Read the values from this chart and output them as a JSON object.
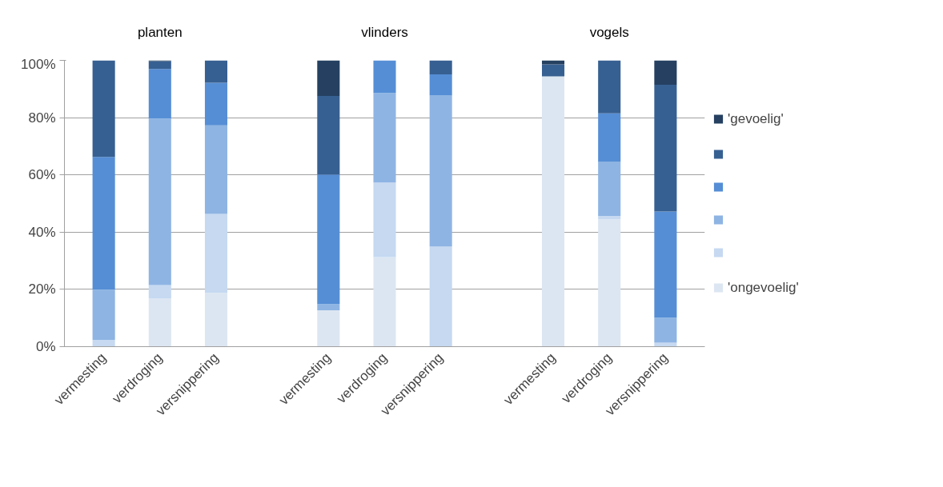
{
  "chart_data": {
    "type": "bar",
    "stacked": true,
    "categories": [
      "vermesting",
      "verdroging",
      "versnippering",
      null,
      "vermesting",
      "verdroging",
      "versnippering",
      null,
      "vermesting",
      "verdroging",
      "versnippering"
    ],
    "annotations": [
      "planten",
      "vlinders",
      "vogels"
    ],
    "series": [
      {
        "name": "'ongevoelig'",
        "color": "#dce6f2",
        "values": [
          0,
          16.9,
          18.8,
          null,
          12.7,
          31.3,
          0,
          null,
          94.4,
          44.5,
          0
        ]
      },
      {
        "color": "#c6d9f1",
        "values": [
          2.4,
          4.6,
          27.6,
          null,
          0,
          26.0,
          35.0,
          null,
          0,
          1.2,
          1.4
        ]
      },
      {
        "color": "#8eb4e3",
        "values": [
          17.5,
          58.2,
          30.9,
          null,
          2.2,
          31.3,
          52.7,
          null,
          0,
          18.8,
          8.7
        ]
      },
      {
        "color": "#558ed5",
        "values": [
          46.4,
          17.3,
          14.9,
          null,
          45.2,
          11.4,
          7.4,
          null,
          0,
          17.0,
          37.1
        ]
      },
      {
        "color": "#376092",
        "values": [
          33.7,
          2.7,
          7.8,
          null,
          27.5,
          0,
          4.9,
          null,
          4.2,
          18.5,
          44.3
        ]
      },
      {
        "name": "'gevoelig'",
        "color": "#254061",
        "values": [
          0,
          0.3,
          0,
          null,
          12.4,
          0,
          0,
          null,
          1.4,
          0,
          8.5
        ]
      }
    ],
    "ylim": [
      0,
      100
    ],
    "yticks": [
      {
        "value": 0,
        "label": "0%"
      },
      {
        "value": 20,
        "label": "20%"
      },
      {
        "value": 40,
        "label": "40%"
      },
      {
        "value": 60,
        "label": "60%"
      },
      {
        "value": 80,
        "label": "80%"
      },
      {
        "value": 100,
        "label": "100%"
      }
    ],
    "grid": "y",
    "legend": "right"
  }
}
